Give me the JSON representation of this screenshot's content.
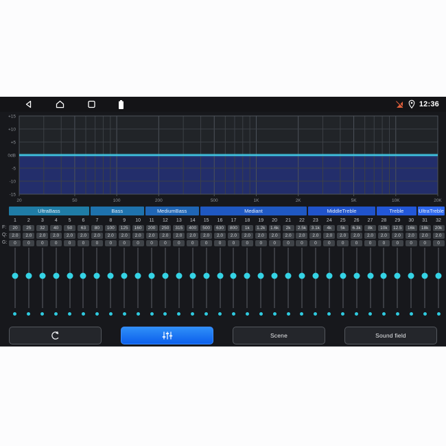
{
  "status_bar": {
    "time": "12:36"
  },
  "chart_data": {
    "type": "area",
    "title": "EQ frequency response (flat curve at 0 dB)",
    "x_scale": "log",
    "xlim": [
      20,
      20000
    ],
    "ylim": [
      -15,
      15
    ],
    "x_tick_freqs": [
      20,
      50,
      100,
      200,
      500,
      1000,
      2000,
      5000,
      10000,
      20000
    ],
    "x_tick_labels": [
      "20",
      "50",
      "100",
      "200",
      "500",
      "1K",
      "2K",
      "5K",
      "10K",
      "20K"
    ],
    "x_minor_freqs": [
      30,
      40,
      60,
      70,
      80,
      90,
      300,
      400,
      600,
      700,
      800,
      900,
      3000,
      4000,
      6000,
      7000,
      8000,
      9000
    ],
    "y_tick_values": [
      15,
      10,
      5,
      0,
      -5,
      -10,
      -15
    ],
    "y_tick_labels": [
      "+15",
      "+10",
      "+5",
      "0dB",
      "-5",
      "-10",
      "-15"
    ],
    "series": [
      {
        "name": "eq-response",
        "gain_db": 0,
        "fill_to": -15
      }
    ],
    "grid": true,
    "colors": {
      "line": "#41c9e5",
      "fill": "#232e6b",
      "plot_bg": "#212428",
      "grid": "#3c4046",
      "grid_major": "#4d525a",
      "tick_text": "#8e9298"
    }
  },
  "band_groups": [
    {
      "label": "UltraBass",
      "span": 6,
      "color": "#1f7ca6"
    },
    {
      "label": "Bass",
      "span": 4,
      "color": "#1e72ad"
    },
    {
      "label": "MediumBass",
      "span": 4,
      "color": "#1f65b4"
    },
    {
      "label": "Mediant",
      "span": 8,
      "color": "#1f58c2"
    },
    {
      "label": "MiddleTreble",
      "span": 5,
      "color": "#2053cb"
    },
    {
      "label": "Treble",
      "span": 3,
      "color": "#2257d8"
    },
    {
      "label": "UltraTreble",
      "span": 2,
      "color": "#2e68ef"
    }
  ],
  "bands": {
    "row_labels": {
      "f": "F:",
      "q": "Q:",
      "g": "G:"
    },
    "numbers": [
      "1",
      "2",
      "3",
      "4",
      "5",
      "6",
      "7",
      "8",
      "9",
      "10",
      "11",
      "12",
      "13",
      "14",
      "15",
      "16",
      "17",
      "18",
      "19",
      "20",
      "21",
      "22",
      "23",
      "24",
      "25",
      "26",
      "27",
      "28",
      "29",
      "30",
      "31",
      "32"
    ],
    "freq": [
      "20",
      "25",
      "32",
      "40",
      "50",
      "63",
      "80",
      "100",
      "125",
      "160",
      "200",
      "250",
      "315",
      "400",
      "500",
      "630",
      "800",
      "1k",
      "1.2k",
      "1.6k",
      "2k",
      "2.5k",
      "3.1k",
      "4k",
      "5k",
      "6.3k",
      "8k",
      "10k",
      "12.5",
      "16k",
      "18k",
      "20k"
    ],
    "q": [
      "2.0",
      "2.0",
      "2.0",
      "2.0",
      "2.0",
      "2.0",
      "2.0",
      "2.0",
      "2.0",
      "2.0",
      "2.0",
      "2.0",
      "2.0",
      "2.0",
      "2.0",
      "2.0",
      "2.0",
      "2.0",
      "2.0",
      "2.0",
      "2.0",
      "2.0",
      "2.0",
      "2.0",
      "2.0",
      "2.0",
      "2.0",
      "2.0",
      "2.0",
      "2.0",
      "2.0",
      "2.0"
    ],
    "gain": [
      "0",
      "0",
      "0",
      "0",
      "0",
      "0",
      "0",
      "0",
      "0",
      "0",
      "0",
      "0",
      "0",
      "0",
      "0",
      "0",
      "0",
      "0",
      "0",
      "0",
      "0",
      "0",
      "0",
      "0",
      "0",
      "0",
      "0",
      "0",
      "0",
      "0",
      "0",
      "0"
    ],
    "slider_gain_db": 0
  },
  "buttons": {
    "reset": {
      "icon": "reset-icon"
    },
    "equalizer": {
      "icon": "equalizer-sliders-icon",
      "active": true,
      "color": "#1377f2"
    },
    "scene_label": "Scene",
    "sound_field_label": "Sound field"
  },
  "theme": {
    "panel_bg": "#17181c",
    "statusbar_bg": "#141417",
    "accent_cyan": "#35d3e5",
    "chip_bg": "#3e4247",
    "canvas_bg": "#fcfcfd"
  }
}
